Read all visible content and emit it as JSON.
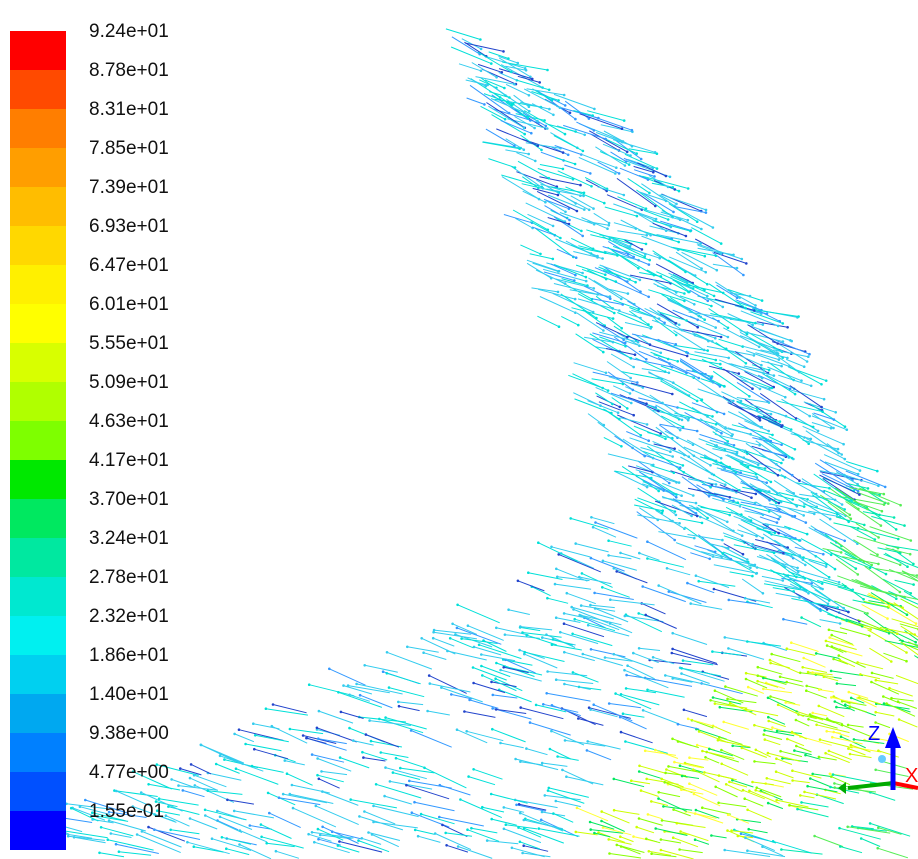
{
  "legend": {
    "labels": [
      "9.24e+01",
      "8.78e+01",
      "8.31e+01",
      "7.85e+01",
      "7.39e+01",
      "6.93e+01",
      "6.47e+01",
      "6.01e+01",
      "5.55e+01",
      "5.09e+01",
      "4.63e+01",
      "4.17e+01",
      "3.70e+01",
      "3.24e+01",
      "2.78e+01",
      "2.32e+01",
      "1.86e+01",
      "1.40e+01",
      "9.38e+00",
      "4.77e+00",
      "1.55e-01"
    ],
    "colors": [
      "#ff0000",
      "#ff4a00",
      "#ff7e00",
      "#ff9e00",
      "#ffbd00",
      "#ffd800",
      "#fff000",
      "#ffff00",
      "#d8ff00",
      "#b0ff00",
      "#7eff00",
      "#00e800",
      "#00e860",
      "#00e8a0",
      "#00e8d0",
      "#00f0f0",
      "#00d0f0",
      "#00a8f0",
      "#0080ff",
      "#0050ff",
      "#0000ff"
    ]
  },
  "triad": {
    "z_label": "Z",
    "x_label": "X",
    "colors": {
      "z": "#0000ff",
      "x": "#ff0000",
      "y": "#00aa00"
    }
  }
}
